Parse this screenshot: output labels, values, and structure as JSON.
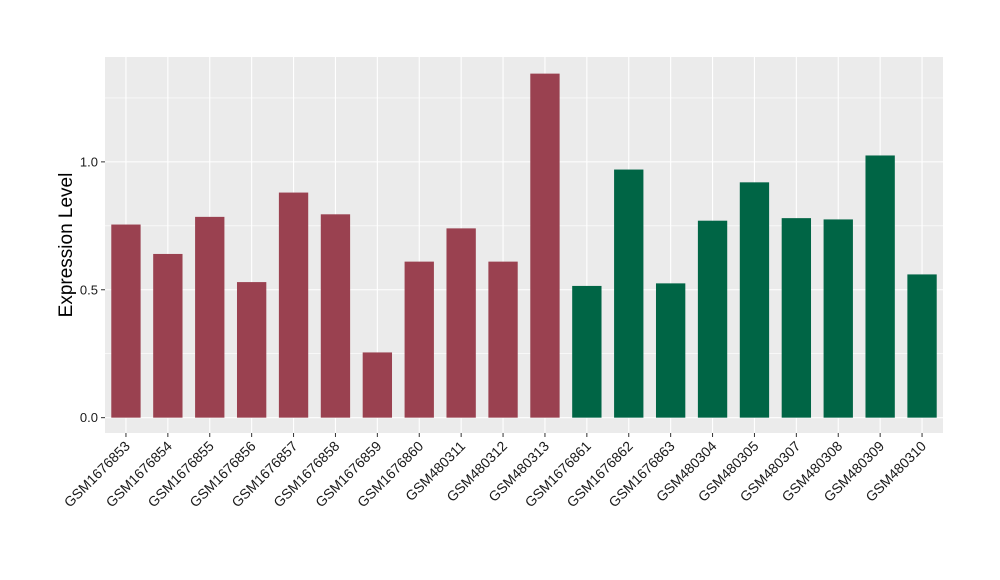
{
  "chart_data": {
    "type": "bar",
    "title": "",
    "xlabel": "",
    "ylabel": "Expression Level",
    "ylim": [
      -0.06,
      1.41
    ],
    "yticks": [
      0.0,
      0.5,
      1.0
    ],
    "ytick_labels": [
      "0.0",
      "0.5",
      "1.0"
    ],
    "grid": true,
    "legend": "none",
    "colors": {
      "panel_background": "#ebebeb",
      "grid_major": "#ffffff",
      "group_1": "#9a4150",
      "group_2": "#006545"
    },
    "categories": [
      "GSM1676853",
      "GSM1676854",
      "GSM1676855",
      "GSM1676856",
      "GSM1676857",
      "GSM1676858",
      "GSM1676859",
      "GSM1676860",
      "GSM480311",
      "GSM480312",
      "GSM480313",
      "GSM1676861",
      "GSM1676862",
      "GSM1676863",
      "GSM480304",
      "GSM480305",
      "GSM480307",
      "GSM480308",
      "GSM480309",
      "GSM480310"
    ],
    "values": [
      0.755,
      0.64,
      0.785,
      0.53,
      0.88,
      0.795,
      0.255,
      0.61,
      0.74,
      0.61,
      1.345,
      0.515,
      0.97,
      0.525,
      0.77,
      0.92,
      0.78,
      0.775,
      1.025,
      0.56
    ],
    "bar_groups": [
      "group_1",
      "group_1",
      "group_1",
      "group_1",
      "group_1",
      "group_1",
      "group_1",
      "group_1",
      "group_1",
      "group_1",
      "group_1",
      "group_2",
      "group_2",
      "group_2",
      "group_2",
      "group_2",
      "group_2",
      "group_2",
      "group_2",
      "group_2"
    ]
  }
}
